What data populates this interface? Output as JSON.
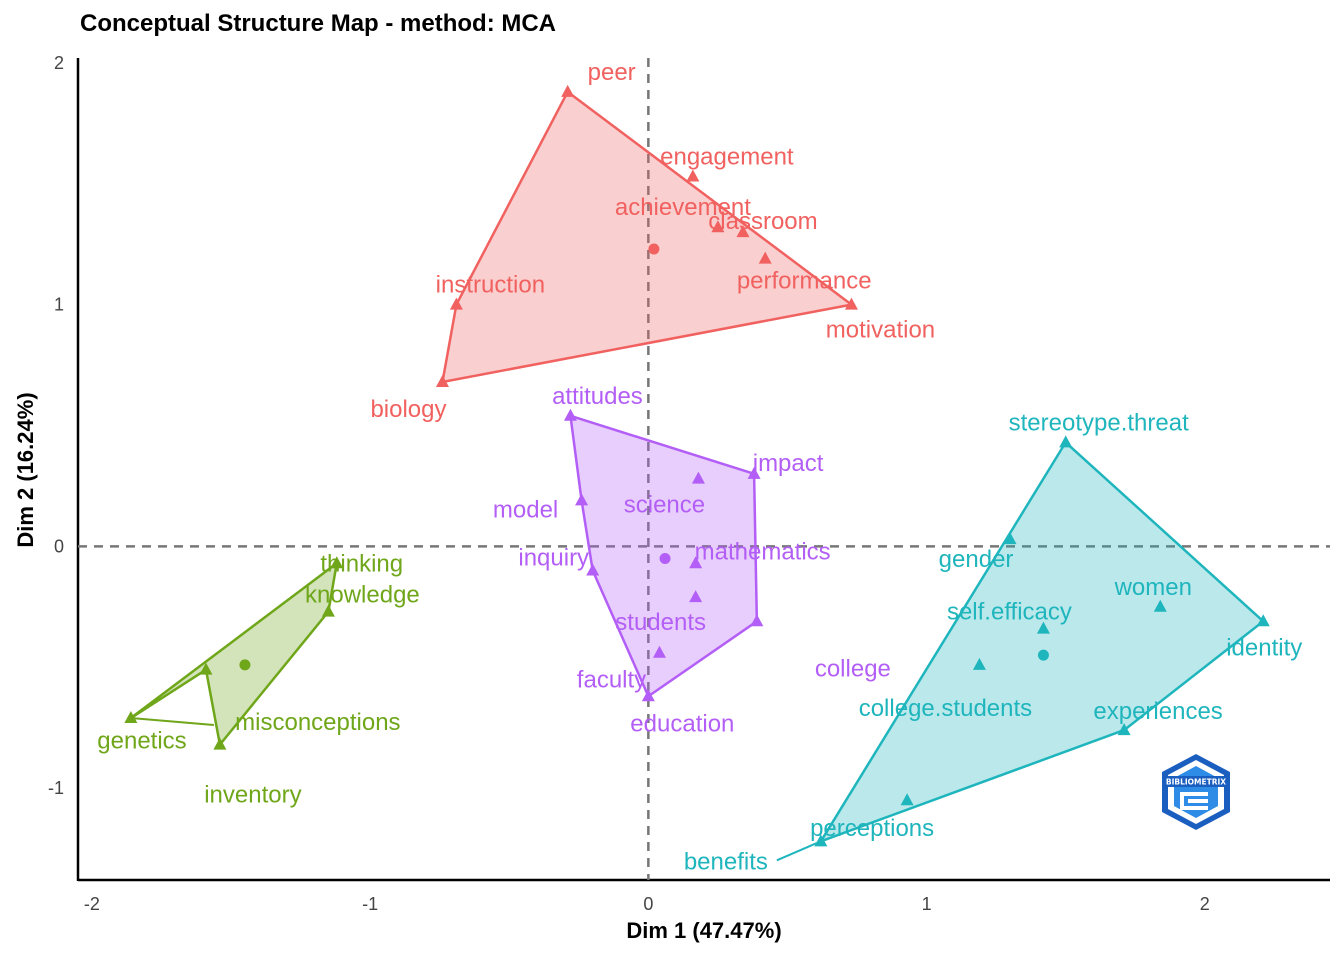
{
  "title": "Conceptual Structure Map - method: MCA",
  "chart_data": {
    "type": "scatter",
    "title": "Conceptual Structure Map - method: MCA",
    "xlabel": "Dim 1 (47.47%)",
    "ylabel": "Dim 2 (16.24%)",
    "xlim": [
      -2.05,
      2.45
    ],
    "ylim": [
      -1.38,
      2.02
    ],
    "xticks": [
      -2,
      -1,
      0,
      1,
      2
    ],
    "yticks": [
      -1,
      0,
      1,
      2
    ],
    "grid": false,
    "reference_lines": {
      "x": 0,
      "y": 0,
      "style": "dashed"
    },
    "clusters": [
      {
        "color": "#F0615F",
        "centroid": {
          "x": 0.02,
          "y": 1.23
        },
        "hull": [
          "peer",
          "motivation",
          "biology",
          "instruction"
        ],
        "points": [
          {
            "label": "peer",
            "x": -0.29,
            "y": 1.88
          },
          {
            "label": "engagement",
            "x": 0.16,
            "y": 1.53
          },
          {
            "label": "achievement",
            "x": 0.25,
            "y": 1.32
          },
          {
            "label": "classroom",
            "x": 0.34,
            "y": 1.3
          },
          {
            "label": "performance",
            "x": 0.42,
            "y": 1.19
          },
          {
            "label": "motivation",
            "x": 0.73,
            "y": 1.0
          },
          {
            "label": "instruction",
            "x": -0.69,
            "y": 1.0
          },
          {
            "label": "biology",
            "x": -0.74,
            "y": 0.68
          }
        ]
      },
      {
        "color": "#B35EF6",
        "centroid": {
          "x": 0.06,
          "y": -0.05
        },
        "hull": [
          "attitudes",
          "impact",
          "college",
          "education",
          "inquiry",
          "model"
        ],
        "points": [
          {
            "label": "attitudes",
            "x": -0.28,
            "y": 0.54
          },
          {
            "label": "impact",
            "x": 0.38,
            "y": 0.3
          },
          {
            "label": "science",
            "x": 0.18,
            "y": 0.28
          },
          {
            "label": "model",
            "x": -0.24,
            "y": 0.19
          },
          {
            "label": "mathematics",
            "x": 0.17,
            "y": -0.07
          },
          {
            "label": "inquiry",
            "x": -0.2,
            "y": -0.1
          },
          {
            "label": "students",
            "x": 0.17,
            "y": -0.21
          },
          {
            "label": "college",
            "x": 0.39,
            "y": -0.31
          },
          {
            "label": "faculty",
            "x": 0.04,
            "y": -0.44
          },
          {
            "label": "education",
            "x": 0.0,
            "y": -0.62
          }
        ]
      },
      {
        "color": "#1FB5BD",
        "centroid": {
          "x": 1.42,
          "y": -0.45
        },
        "hull": [
          "stereotype.threat",
          "identity",
          "experiences",
          "benefits"
        ],
        "points": [
          {
            "label": "stereotype.threat",
            "x": 1.5,
            "y": 0.43
          },
          {
            "label": "gender",
            "x": 1.3,
            "y": 0.03
          },
          {
            "label": "women",
            "x": 1.84,
            "y": -0.25
          },
          {
            "label": "identity",
            "x": 2.21,
            "y": -0.31
          },
          {
            "label": "self.efficacy",
            "x": 1.42,
            "y": -0.34
          },
          {
            "label": "college.students",
            "x": 1.19,
            "y": -0.49
          },
          {
            "label": "experiences",
            "x": 1.71,
            "y": -0.76
          },
          {
            "label": "perceptions",
            "x": 0.93,
            "y": -1.05
          },
          {
            "label": "benefits",
            "x": 0.62,
            "y": -1.22
          }
        ]
      },
      {
        "color": "#6FA61A",
        "centroid": {
          "x": -1.45,
          "y": -0.49
        },
        "hull": [
          "thinking",
          "knowledge",
          "inventory",
          "genetics",
          "misconceptions"
        ],
        "points": [
          {
            "label": "thinking",
            "x": -1.12,
            "y": -0.07
          },
          {
            "label": "knowledge",
            "x": -1.15,
            "y": -0.27
          },
          {
            "label": "genetics",
            "x": -1.59,
            "y": -0.51
          },
          {
            "label": "misconceptions",
            "x": -1.86,
            "y": -0.71
          },
          {
            "label": "inventory",
            "x": -1.54,
            "y": -0.82
          }
        ]
      }
    ]
  },
  "logo": {
    "text": "BIBLIOMETRIX"
  }
}
